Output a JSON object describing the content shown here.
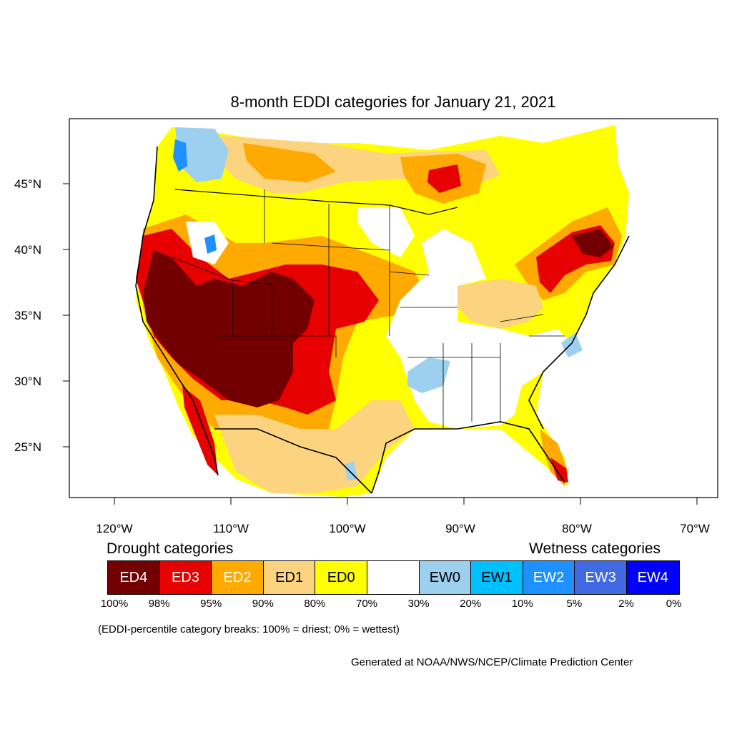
{
  "title": "8-month EDDI categories for January 21, 2021",
  "lat_labels": [
    "45°N",
    "40°N",
    "35°N",
    "30°N",
    "25°N"
  ],
  "lon_labels": [
    "120°W",
    "110°W",
    "100°W",
    "90°W",
    "80°W",
    "70°W"
  ],
  "legend": {
    "drought_heading": "Drought categories",
    "wetness_heading": "Wetness categories",
    "categories": [
      {
        "label": "ED4",
        "color": "#730000",
        "text_color": "#ffffff"
      },
      {
        "label": "ED3",
        "color": "#e60000",
        "text_color": "#ffffff"
      },
      {
        "label": "ED2",
        "color": "#ffaa00",
        "text_color": "#ffffff"
      },
      {
        "label": "ED1",
        "color": "#fcd37f",
        "text_color": "#000000"
      },
      {
        "label": "ED0",
        "color": "#ffff00",
        "text_color": "#000000"
      },
      {
        "label": "",
        "color": "#ffffff",
        "text_color": "#000000"
      },
      {
        "label": "EW0",
        "color": "#9dcfef",
        "text_color": "#000000"
      },
      {
        "label": "EW1",
        "color": "#00bfff",
        "text_color": "#000000"
      },
      {
        "label": "EW2",
        "color": "#1e90ff",
        "text_color": "#ffffff"
      },
      {
        "label": "EW3",
        "color": "#4169e1",
        "text_color": "#ffffff"
      },
      {
        "label": "EW4",
        "color": "#0000ff",
        "text_color": "#ffffff"
      }
    ],
    "breaks": [
      "100%",
      "98%",
      "95%",
      "90%",
      "80%",
      "70%",
      "30%",
      "20%",
      "10%",
      "5%",
      "2%",
      "0%"
    ]
  },
  "note": "(EDDI-percentile category breaks: 100% = driest; 0% = wettest)",
  "credit": "Generated at NOAA/NWS/NCEP/Climate Prediction Center"
}
